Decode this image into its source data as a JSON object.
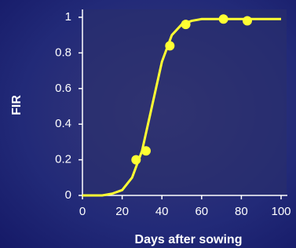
{
  "chart_data": {
    "type": "line",
    "xlabel": "Days after sowing",
    "ylabel": "FIR",
    "xlim": [
      0,
      100
    ],
    "xticks": [
      0,
      20,
      40,
      60,
      80,
      100
    ],
    "ylim": [
      0,
      1
    ],
    "yticks": [
      0,
      0.2,
      0.4,
      0.6,
      0.8,
      1
    ],
    "series": [
      {
        "style": "line",
        "color": "#ffff33",
        "x": [
          0,
          10,
          15,
          20,
          25,
          30,
          35,
          40,
          45,
          50,
          55,
          60,
          70,
          80,
          90,
          100
        ],
        "values": [
          0,
          0,
          0.01,
          0.03,
          0.1,
          0.25,
          0.5,
          0.75,
          0.9,
          0.96,
          0.98,
          0.99,
          0.99,
          0.99,
          0.99,
          0.99
        ]
      },
      {
        "style": "points",
        "color": "#ffff33",
        "x": [
          27,
          32,
          44,
          52,
          71,
          83
        ],
        "values": [
          0.2,
          0.25,
          0.84,
          0.96,
          0.99,
          0.98
        ]
      }
    ]
  }
}
